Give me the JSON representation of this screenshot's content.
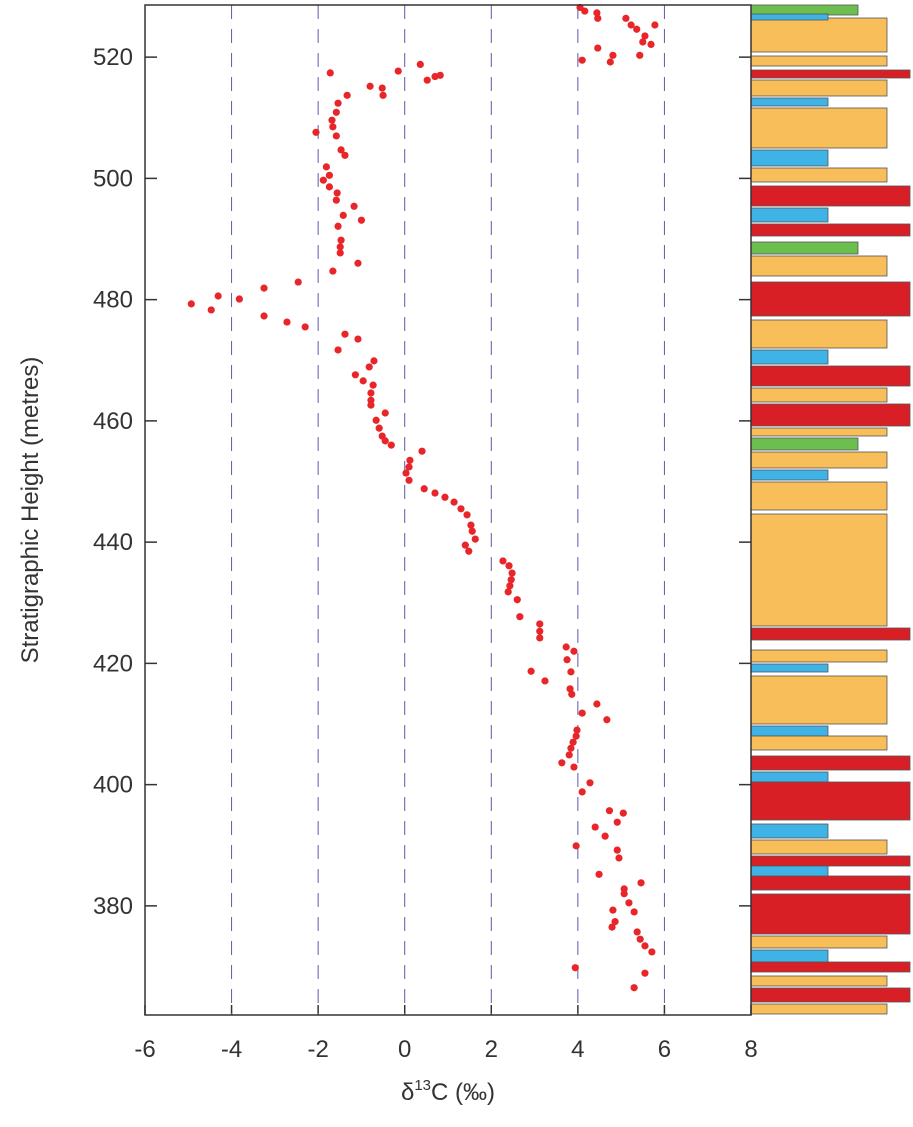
{
  "chart_data": {
    "type": "scatter",
    "ylabel": "Stratigraphic Height (metres)",
    "xlabel": {
      "prefix": "δ",
      "sup": "13",
      "suffix": "C (‰)"
    },
    "color": "#e8262a",
    "grid_color": "#5a5aa8",
    "grid": true,
    "xlim": [
      -6,
      8
    ],
    "xticks": [
      -6,
      -4,
      -2,
      0,
      2,
      4,
      6,
      8
    ],
    "ylim": [
      362,
      528.6
    ],
    "yticks": [
      380,
      400,
      420,
      440,
      460,
      480,
      500,
      520
    ],
    "x": [
      4.05,
      4.16,
      4.44,
      4.46,
      5.11,
      5.23,
      5.78,
      5.36,
      5.55,
      5.5,
      5.69,
      4.46,
      4.81,
      5.43,
      4.1,
      4.75,
      -1.72,
      -0.15,
      0.36,
      0.52,
      0.7,
      0.82,
      -0.8,
      -0.52,
      -0.5,
      -1.33,
      -1.54,
      -1.58,
      -1.68,
      -1.66,
      -2.05,
      -1.58,
      -1.47,
      -1.38,
      -1.81,
      -1.74,
      -1.88,
      -1.74,
      -1.56,
      -1.58,
      -1.17,
      -1.42,
      -1.0,
      -1.54,
      -1.47,
      -1.49,
      -1.49,
      -1.08,
      -1.66,
      -2.46,
      -3.25,
      -4.31,
      -3.82,
      -4.93,
      -4.47,
      -3.25,
      -2.72,
      -2.3,
      -1.38,
      -1.08,
      -1.54,
      -0.71,
      -0.82,
      -1.14,
      -0.96,
      -0.73,
      -0.78,
      -0.78,
      -0.78,
      -0.45,
      -0.66,
      -0.59,
      -0.52,
      -0.45,
      -0.31,
      0.4,
      0.12,
      0.1,
      0.03,
      0.1,
      0.45,
      0.7,
      0.93,
      1.14,
      1.3,
      1.44,
      1.53,
      1.56,
      1.63,
      1.4,
      1.48,
      2.27,
      2.41,
      2.48,
      2.46,
      2.43,
      2.39,
      2.6,
      2.66,
      3.12,
      3.12,
      3.12,
      3.73,
      3.91,
      3.75,
      2.92,
      3.84,
      3.24,
      3.82,
      3.86,
      4.44,
      4.1,
      4.67,
      3.98,
      3.96,
      3.89,
      3.84,
      3.8,
      3.63,
      3.91,
      4.28,
      4.1,
      4.73,
      5.05,
      4.91,
      4.4,
      4.63,
      3.96,
      4.91,
      4.95,
      4.49,
      5.46,
      5.07,
      5.07,
      5.18,
      4.81,
      5.3,
      4.86,
      4.79,
      5.37,
      5.44,
      5.55,
      5.71,
      3.94,
      5.55,
      5.3
    ],
    "values": [
      528.2,
      527.6,
      527.3,
      526.4,
      526.4,
      525.3,
      525.3,
      524.6,
      523.5,
      522.5,
      522.1,
      521.5,
      520.3,
      520.3,
      519.5,
      519.2,
      517.4,
      517.7,
      518.8,
      516.2,
      516.8,
      517.0,
      515.2,
      514.9,
      513.7,
      513.7,
      512.4,
      510.9,
      509.6,
      508.5,
      507.6,
      507.0,
      504.7,
      503.8,
      501.9,
      500.5,
      499.7,
      498.6,
      497.6,
      496.4,
      495.4,
      493.9,
      493.1,
      492.1,
      489.8,
      488.7,
      487.7,
      486.0,
      484.7,
      482.9,
      481.9,
      480.6,
      480.1,
      479.3,
      478.3,
      477.3,
      476.3,
      475.5,
      474.3,
      473.5,
      471.7,
      469.9,
      468.9,
      467.6,
      466.6,
      465.9,
      464.6,
      463.4,
      462.6,
      461.3,
      460.1,
      458.8,
      457.5,
      456.7,
      456.0,
      455.0,
      453.5,
      452.4,
      451.4,
      450.2,
      448.8,
      448.1,
      447.4,
      446.6,
      445.5,
      444.5,
      442.8,
      441.8,
      440.5,
      439.5,
      438.5,
      436.9,
      436.1,
      434.9,
      433.8,
      432.8,
      431.8,
      430.5,
      427.7,
      426.5,
      425.3,
      424.2,
      422.7,
      422.0,
      420.6,
      418.7,
      418.6,
      417.1,
      415.8,
      414.9,
      413.3,
      411.8,
      410.7,
      409.0,
      408.0,
      407.0,
      406.0,
      404.9,
      403.6,
      402.9,
      400.3,
      398.8,
      395.7,
      395.3,
      393.8,
      393.0,
      391.5,
      389.9,
      389.2,
      387.9,
      385.2,
      383.8,
      382.8,
      382.0,
      380.5,
      379.3,
      379.0,
      377.4,
      376.5,
      375.7,
      374.5,
      373.4,
      372.4,
      369.8,
      368.9,
      366.5
    ]
  }
}
